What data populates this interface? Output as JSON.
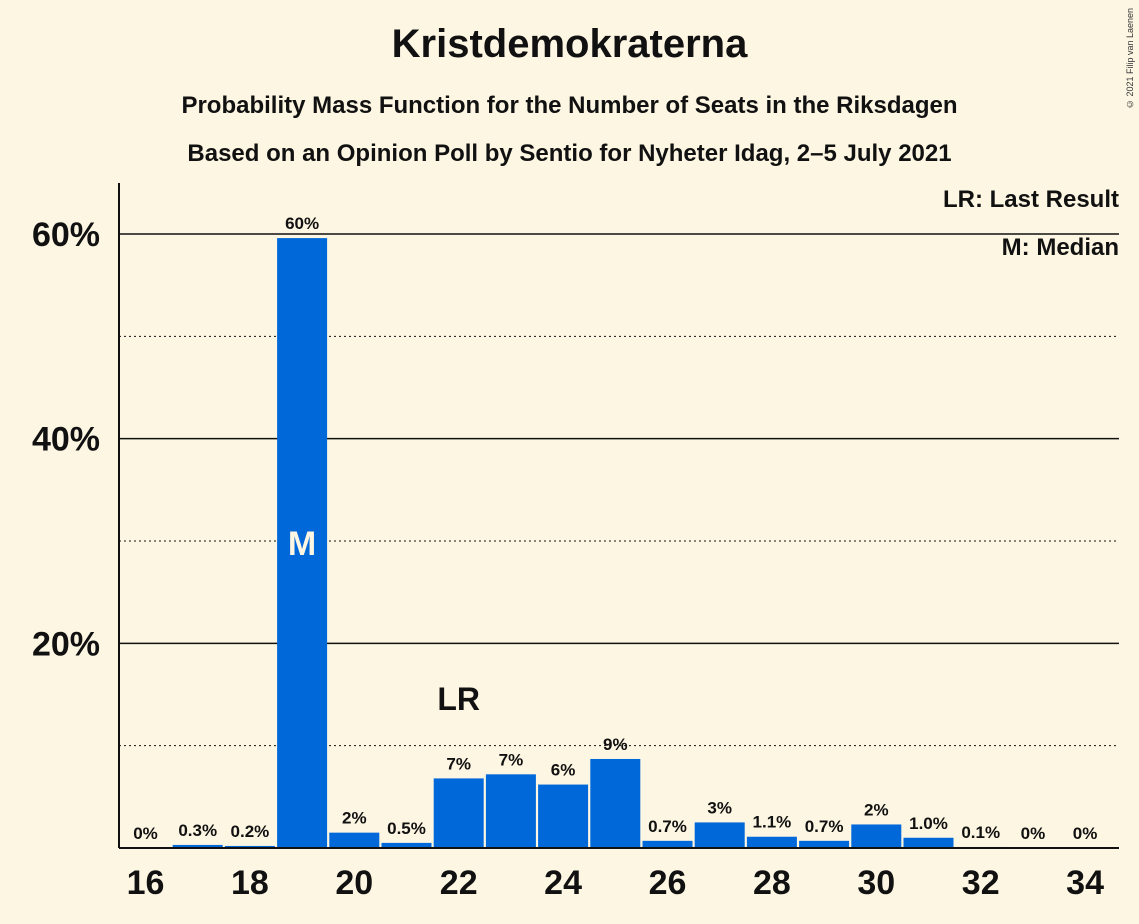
{
  "header": {
    "title": "Kristdemokraterna",
    "subtitle": "Probability Mass Function for the Number of Seats in the Riksdagen",
    "subtitle2": "Based on an Opinion Poll by Sentio for Nyheter Idag, 2–5 July 2021",
    "copyright": "© 2021 Filip van Laenen"
  },
  "legend": {
    "last_result": "LR: Last Result",
    "median": "M: Median"
  },
  "colors": {
    "background": "#fdf6e3",
    "bar": "#0068d9",
    "text": "#111111"
  },
  "chart_data": {
    "type": "bar",
    "title": "Kristdemokraterna",
    "xlabel": "",
    "ylabel": "",
    "ylim": [
      0,
      65
    ],
    "yticks": [
      {
        "value": 20,
        "label": "20%"
      },
      {
        "value": 40,
        "label": "40%"
      },
      {
        "value": 60,
        "label": "60%"
      }
    ],
    "minor_gridlines": [
      10,
      30,
      50
    ],
    "xticks": [
      16,
      18,
      20,
      22,
      24,
      26,
      28,
      30,
      32,
      34
    ],
    "categories": [
      16,
      17,
      18,
      19,
      20,
      21,
      22,
      23,
      24,
      25,
      26,
      27,
      28,
      29,
      30,
      31,
      32,
      33,
      34
    ],
    "values": [
      0,
      0.3,
      0.2,
      59.6,
      1.5,
      0.5,
      6.8,
      7.2,
      6.2,
      8.7,
      0.7,
      2.5,
      1.1,
      0.7,
      2.3,
      1.0,
      0.1,
      0,
      0
    ],
    "labels": [
      "0%",
      "0.3%",
      "0.2%",
      "60%",
      "2%",
      "0.5%",
      "7%",
      "7%",
      "6%",
      "9%",
      "0.7%",
      "3%",
      "1.1%",
      "0.7%",
      "2%",
      "1.0%",
      "0.1%",
      "0%",
      "0%"
    ],
    "median_seat": 19,
    "median_marker": "M",
    "last_result_seat": 22,
    "last_result_marker": "LR",
    "grid": true
  }
}
